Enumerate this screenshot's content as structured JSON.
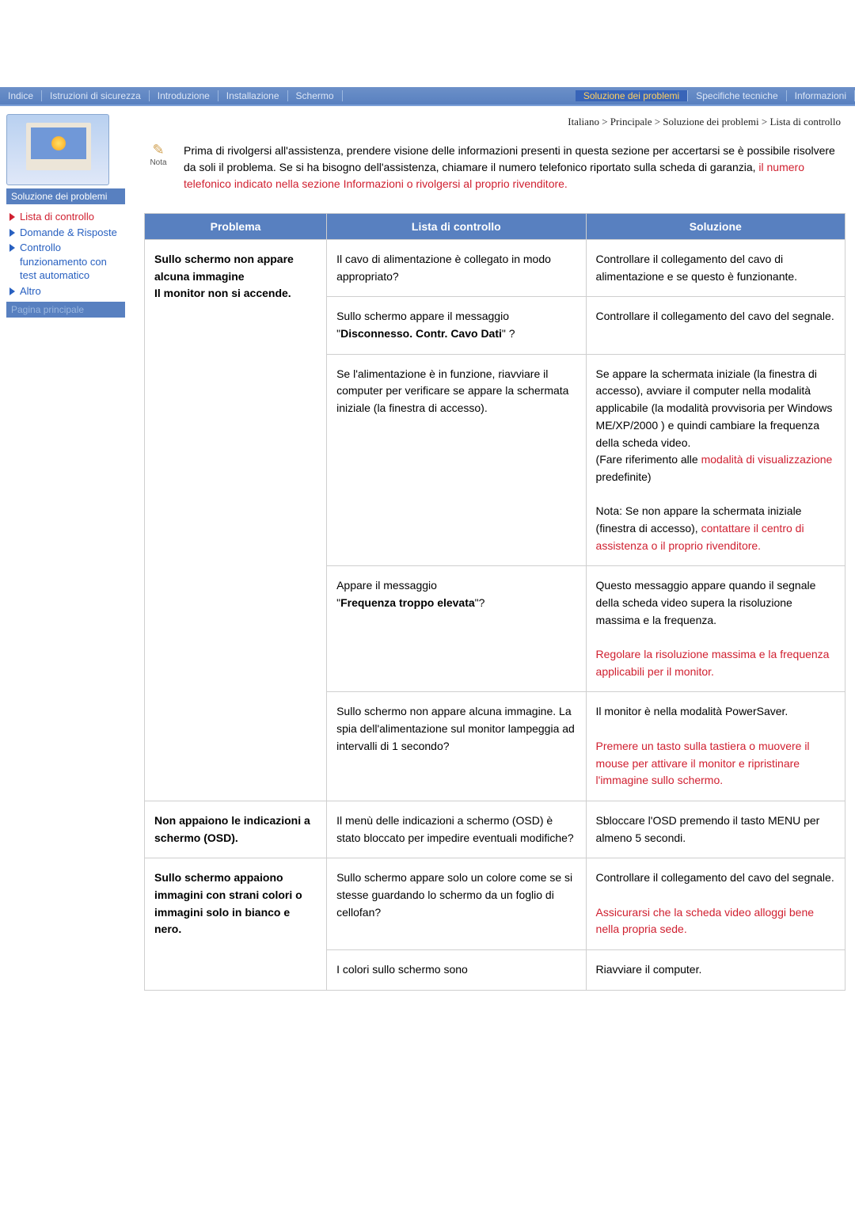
{
  "nav": {
    "items": [
      {
        "label": "Indice"
      },
      {
        "label": "Istruzioni di sicurezza"
      },
      {
        "label": "Introduzione"
      },
      {
        "label": "Installazione"
      },
      {
        "label": "Schermo"
      },
      {
        "label": "Soluzione dei problemi",
        "selected": true
      },
      {
        "label": "Specifiche tecniche"
      },
      {
        "label": "Informazioni"
      }
    ]
  },
  "sidebar": {
    "title": "Soluzione dei problemi",
    "items": [
      {
        "label": "Lista di controllo",
        "current": true
      },
      {
        "label": "Domande & Risposte"
      },
      {
        "label": "Controllo funzionamento con test automatico"
      },
      {
        "label": "Altro"
      }
    ],
    "footer": "Pagina principale"
  },
  "breadcrumb": "Italiano > Principale > Soluzione dei problemi > Lista di controllo",
  "intro": {
    "nota_label": "Nota",
    "text_a": "Prima di rivolgersi all'assistenza, prendere visione delle informazioni presenti in questa sezione per accertarsi se è possibile risolvere da soli il problema. Se si ha bisogno dell'assistenza, chiamare il numero telefonico riportato sulla scheda di garanzia, ",
    "text_b": "il numero telefonico indicato nella sezione Informazioni o rivolgersi al proprio rivenditore."
  },
  "table": {
    "headers": {
      "p": "Problema",
      "c": "Lista di controllo",
      "s": "Soluzione"
    },
    "groups": [
      {
        "problem": "Sullo schermo non appare alcuna immagine\nIl monitor non si accende.",
        "rows": [
          {
            "check": [
              {
                "t": "Il cavo di alimentazione è collegato in modo appropriato?"
              }
            ],
            "sol": [
              {
                "t": "Controllare il collegamento del cavo di alimentazione e se questo è funzionante."
              }
            ]
          },
          {
            "check": [
              {
                "t": "Sullo schermo appare il messaggio \""
              },
              {
                "t": "Disconnesso. Contr. Cavo Dati",
                "bold": true
              },
              {
                "t": "\" ?"
              }
            ],
            "sol": [
              {
                "t": "Controllare il collegamento del cavo del segnale."
              }
            ]
          },
          {
            "check": [
              {
                "t": "Se l'alimentazione è in funzione, riavviare il computer per verificare se appare la schermata iniziale (la finestra di accesso)."
              }
            ],
            "sol": [
              {
                "t": "Se appare la schermata iniziale (la finestra di accesso), avviare il computer nella modalità applicabile (la modalità provvisoria per Windows ME/XP/2000 ) e quindi cambiare la frequenza della scheda video.\n(Fare riferimento alle "
              },
              {
                "t": "modalità di visualizzazione",
                "hl": true
              },
              {
                "t": " predefinite)\n\nNota: Se non appare la schermata iniziale (finestra di accesso), "
              },
              {
                "t": "contattare il centro di assistenza o il proprio rivenditore.",
                "hl": true
              }
            ]
          },
          {
            "check": [
              {
                "t": "Appare il messaggio\n\""
              },
              {
                "t": "Frequenza troppo elevata",
                "bold": true
              },
              {
                "t": "\"?"
              }
            ],
            "sol": [
              {
                "t": "Questo messaggio appare quando il segnale della scheda video supera la risoluzione massima e la frequenza.\n\n"
              },
              {
                "t": "Regolare la risoluzione massima e la frequenza applicabili per il monitor.",
                "hl": true
              }
            ]
          },
          {
            "check": [
              {
                "t": "Sullo schermo non appare alcuna immagine. La spia dell'alimentazione sul monitor lampeggia ad intervalli di 1 secondo?"
              }
            ],
            "sol": [
              {
                "t": "Il monitor è nella modalità PowerSaver.\n\n"
              },
              {
                "t": "Premere un tasto sulla tastiera o muovere il mouse per attivare il monitor e ripristinare l'immagine sullo schermo.",
                "hl": true
              }
            ]
          }
        ]
      },
      {
        "problem": "Non appaiono le indicazioni a schermo (OSD).",
        "rows": [
          {
            "check": [
              {
                "t": "Il menù delle indicazioni a schermo (OSD) è stato bloccato per impedire eventuali modifiche?"
              }
            ],
            "sol": [
              {
                "t": "Sbloccare l'OSD premendo il tasto MENU per almeno 5 secondi."
              }
            ]
          }
        ]
      },
      {
        "problem": "Sullo schermo appaiono immagini con strani colori o immagini solo in bianco e nero.",
        "rows": [
          {
            "check": [
              {
                "t": "Sullo schermo appare solo un colore come se si stesse guardando lo schermo da un foglio di cellofan?"
              }
            ],
            "sol": [
              {
                "t": "Controllare il collegamento del cavo del segnale.\n\n"
              },
              {
                "t": "Assicurarsi che la scheda video alloggi bene nella propria sede.",
                "hl": true
              }
            ]
          },
          {
            "check": [
              {
                "t": "I colori sullo schermo sono"
              }
            ],
            "sol": [
              {
                "t": "Riavviare il computer."
              }
            ]
          }
        ]
      }
    ]
  }
}
